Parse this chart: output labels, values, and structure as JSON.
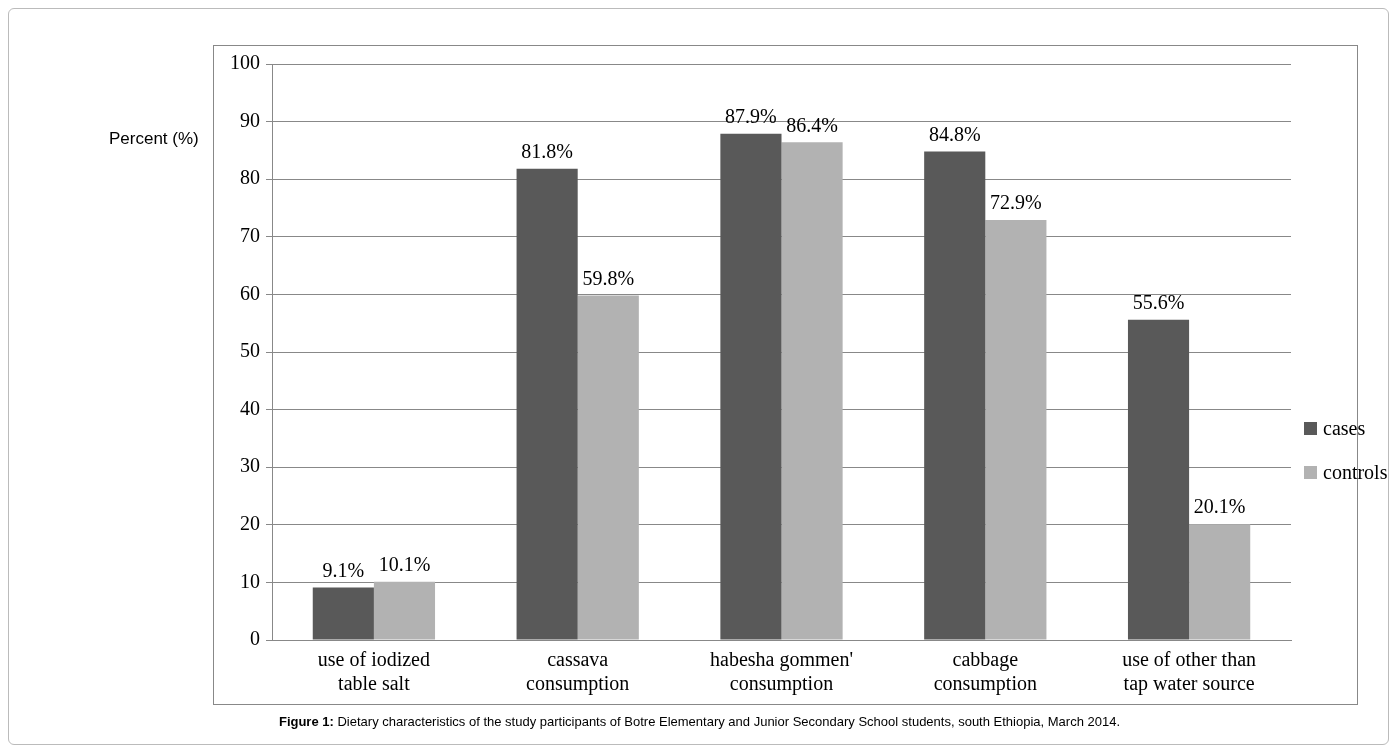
{
  "chart_data": {
    "type": "bar",
    "ylabel": "Percent (%)",
    "categories": [
      "use of iodized table salt",
      "cassava consumption",
      "habesha gommen' consumption",
      "cabbage consumption",
      "use of other than tap water source"
    ],
    "series": [
      {
        "name": "cases",
        "color": "#595959",
        "values": [
          9.1,
          81.8,
          87.9,
          84.8,
          55.6
        ],
        "value_labels": [
          "9.1%",
          "81.8%",
          "87.9%",
          "84.8%",
          "55.6%"
        ]
      },
      {
        "name": "controls",
        "color": "#b2b2b2",
        "values": [
          10.1,
          59.8,
          86.4,
          72.9,
          20.1
        ],
        "value_labels": [
          "10.1%",
          "59.8%",
          "86.4%",
          "72.9%",
          "20.1%"
        ]
      }
    ],
    "ylim": [
      0,
      100
    ],
    "yticks": [
      0,
      10,
      20,
      30,
      40,
      50,
      60,
      70,
      80,
      90,
      100
    ],
    "grid": "y",
    "legend": "right",
    "annotations": [
      "Figure 1: Dietary characteristics of the study participants of Botre Elementary and Junior Secondary School students, south Ethiopia, March 2014."
    ]
  }
}
